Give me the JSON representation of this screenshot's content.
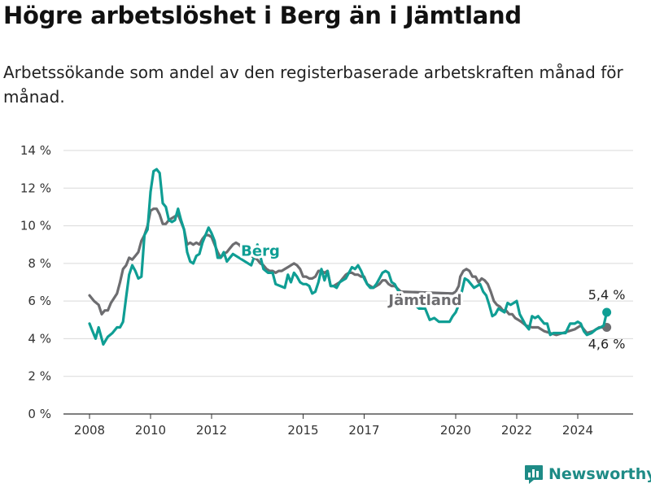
{
  "header": {
    "title": "Högre arbetslöshet i Berg än i Jämtland",
    "subtitle": "Arbetssökande som andel av den registerbaserade arbetskraften månad för månad."
  },
  "branding": {
    "name": "Newsworthy",
    "icon": "bar-chart-logo-icon"
  },
  "colors": {
    "berg": "#0f9e94",
    "jamtland": "#6d6d70",
    "grid": "#d9d9d9",
    "axis": "#333333"
  },
  "chart_data": {
    "type": "line",
    "ylim": [
      0,
      14
    ],
    "xlim": [
      2007.6,
      2025.8
    ],
    "y_ticks": [
      {
        "value": 0,
        "label": "0 %"
      },
      {
        "value": 2,
        "label": "2 %"
      },
      {
        "value": 4,
        "label": "4 %"
      },
      {
        "value": 6,
        "label": "6 %"
      },
      {
        "value": 8,
        "label": "8 %"
      },
      {
        "value": 10,
        "label": "10 %"
      },
      {
        "value": 12,
        "label": "12 %"
      },
      {
        "value": 14,
        "label": "14 %"
      }
    ],
    "x_ticks": [
      {
        "value": 2008,
        "label": "2008"
      },
      {
        "value": 2010,
        "label": "2010"
      },
      {
        "value": 2012,
        "label": "2012"
      },
      {
        "value": 2015,
        "label": "2015"
      },
      {
        "value": 2017,
        "label": "2017"
      },
      {
        "value": 2020,
        "label": "2020"
      },
      {
        "value": 2022,
        "label": "2022"
      },
      {
        "value": 2024,
        "label": "2024"
      }
    ],
    "grid": true,
    "series": [
      {
        "name": "Berg",
        "color": "#0f9e94",
        "end_label": "5,4 %",
        "points": [
          [
            2008.0,
            4.8
          ],
          [
            2008.1,
            4.4
          ],
          [
            2008.2,
            4.0
          ],
          [
            2008.3,
            4.6
          ],
          [
            2008.45,
            3.7
          ],
          [
            2008.6,
            4.1
          ],
          [
            2008.75,
            4.3
          ],
          [
            2008.9,
            4.6
          ],
          [
            2009.0,
            4.6
          ],
          [
            2009.1,
            4.9
          ],
          [
            2009.2,
            6.2
          ],
          [
            2009.3,
            7.4
          ],
          [
            2009.4,
            7.9
          ],
          [
            2009.5,
            7.6
          ],
          [
            2009.6,
            7.2
          ],
          [
            2009.7,
            7.3
          ],
          [
            2009.8,
            9.5
          ],
          [
            2009.9,
            9.8
          ],
          [
            2010.0,
            11.8
          ],
          [
            2010.1,
            12.9
          ],
          [
            2010.2,
            13.0
          ],
          [
            2010.3,
            12.8
          ],
          [
            2010.4,
            11.2
          ],
          [
            2010.5,
            11.0
          ],
          [
            2010.6,
            10.3
          ],
          [
            2010.7,
            10.2
          ],
          [
            2010.8,
            10.3
          ],
          [
            2010.9,
            10.9
          ],
          [
            2011.0,
            10.3
          ],
          [
            2011.1,
            9.8
          ],
          [
            2011.2,
            8.6
          ],
          [
            2011.3,
            8.1
          ],
          [
            2011.4,
            8.0
          ],
          [
            2011.5,
            8.4
          ],
          [
            2011.6,
            8.5
          ],
          [
            2011.7,
            9.1
          ],
          [
            2011.8,
            9.5
          ],
          [
            2011.9,
            9.9
          ],
          [
            2012.0,
            9.6
          ],
          [
            2012.1,
            9.2
          ],
          [
            2012.2,
            8.3
          ],
          [
            2012.3,
            8.3
          ],
          [
            2012.4,
            8.6
          ],
          [
            2012.5,
            8.1
          ],
          [
            2012.6,
            8.3
          ],
          [
            2012.7,
            8.5
          ],
          [
            2013.3,
            7.9
          ],
          [
            2013.45,
            8.6
          ],
          [
            2013.5,
            9.0
          ],
          [
            2013.7,
            7.7
          ],
          [
            2013.85,
            7.5
          ],
          [
            2014.0,
            7.5
          ],
          [
            2014.1,
            6.9
          ],
          [
            2014.25,
            6.8
          ],
          [
            2014.4,
            6.7
          ],
          [
            2014.5,
            7.4
          ],
          [
            2014.6,
            7.0
          ],
          [
            2014.7,
            7.5
          ],
          [
            2014.8,
            7.3
          ],
          [
            2014.9,
            7.0
          ],
          [
            2015.0,
            6.9
          ],
          [
            2015.1,
            6.9
          ],
          [
            2015.2,
            6.8
          ],
          [
            2015.3,
            6.4
          ],
          [
            2015.4,
            6.5
          ],
          [
            2015.5,
            7.0
          ],
          [
            2015.6,
            7.7
          ],
          [
            2015.7,
            7.1
          ],
          [
            2015.8,
            7.6
          ],
          [
            2015.9,
            6.8
          ],
          [
            2016.0,
            6.8
          ],
          [
            2016.1,
            6.7
          ],
          [
            2016.2,
            7.0
          ],
          [
            2016.3,
            7.1
          ],
          [
            2016.4,
            7.2
          ],
          [
            2016.5,
            7.5
          ],
          [
            2016.6,
            7.8
          ],
          [
            2016.7,
            7.7
          ],
          [
            2016.8,
            7.9
          ],
          [
            2016.9,
            7.6
          ],
          [
            2017.0,
            7.2
          ],
          [
            2017.1,
            6.9
          ],
          [
            2017.2,
            6.7
          ],
          [
            2017.3,
            6.7
          ],
          [
            2017.4,
            6.9
          ],
          [
            2017.5,
            7.2
          ],
          [
            2017.6,
            7.5
          ],
          [
            2017.7,
            7.6
          ],
          [
            2017.8,
            7.5
          ],
          [
            2017.9,
            7.0
          ],
          [
            2018.0,
            6.9
          ],
          [
            2018.1,
            6.6
          ],
          [
            2018.25,
            6.3
          ],
          [
            2018.6,
            5.9
          ],
          [
            2018.8,
            5.6
          ],
          [
            2018.9,
            5.6
          ],
          [
            2019.0,
            5.6
          ],
          [
            2019.15,
            5.0
          ],
          [
            2019.3,
            5.1
          ],
          [
            2019.45,
            4.9
          ],
          [
            2019.6,
            4.9
          ],
          [
            2019.8,
            4.9
          ],
          [
            2019.9,
            5.2
          ],
          [
            2020.0,
            5.4
          ],
          [
            2020.1,
            5.8
          ],
          [
            2020.2,
            6.5
          ],
          [
            2020.3,
            7.2
          ],
          [
            2020.4,
            7.1
          ],
          [
            2020.5,
            6.9
          ],
          [
            2020.6,
            6.7
          ],
          [
            2020.7,
            6.8
          ],
          [
            2020.8,
            6.9
          ],
          [
            2020.9,
            6.5
          ],
          [
            2021.0,
            6.3
          ],
          [
            2021.1,
            5.8
          ],
          [
            2021.2,
            5.2
          ],
          [
            2021.3,
            5.3
          ],
          [
            2021.4,
            5.6
          ],
          [
            2021.5,
            5.5
          ],
          [
            2021.6,
            5.4
          ],
          [
            2021.7,
            5.9
          ],
          [
            2021.8,
            5.8
          ],
          [
            2021.9,
            5.9
          ],
          [
            2022.0,
            6.0
          ],
          [
            2022.1,
            5.3
          ],
          [
            2022.2,
            5.0
          ],
          [
            2022.3,
            4.7
          ],
          [
            2022.4,
            4.5
          ],
          [
            2022.5,
            5.2
          ],
          [
            2022.6,
            5.1
          ],
          [
            2022.7,
            5.2
          ],
          [
            2022.8,
            5.0
          ],
          [
            2022.9,
            4.8
          ],
          [
            2023.0,
            4.8
          ],
          [
            2023.1,
            4.2
          ],
          [
            2023.2,
            4.3
          ],
          [
            2023.3,
            4.3
          ],
          [
            2023.45,
            4.3
          ],
          [
            2023.6,
            4.3
          ],
          [
            2023.75,
            4.8
          ],
          [
            2023.9,
            4.8
          ],
          [
            2024.0,
            4.9
          ],
          [
            2024.1,
            4.8
          ],
          [
            2024.2,
            4.4
          ],
          [
            2024.3,
            4.2
          ],
          [
            2024.45,
            4.3
          ],
          [
            2024.6,
            4.5
          ],
          [
            2024.75,
            4.6
          ],
          [
            2024.85,
            4.7
          ],
          [
            2024.95,
            5.4
          ]
        ]
      },
      {
        "name": "Jämtland",
        "color": "#6d6d70",
        "end_label": "4,6 %",
        "points": [
          [
            2008.0,
            6.3
          ],
          [
            2008.15,
            6.0
          ],
          [
            2008.3,
            5.8
          ],
          [
            2008.4,
            5.3
          ],
          [
            2008.5,
            5.5
          ],
          [
            2008.6,
            5.5
          ],
          [
            2008.7,
            5.9
          ],
          [
            2008.9,
            6.4
          ],
          [
            2009.0,
            7.0
          ],
          [
            2009.1,
            7.7
          ],
          [
            2009.2,
            7.9
          ],
          [
            2009.3,
            8.3
          ],
          [
            2009.4,
            8.2
          ],
          [
            2009.5,
            8.4
          ],
          [
            2009.6,
            8.6
          ],
          [
            2009.7,
            9.2
          ],
          [
            2009.8,
            9.5
          ],
          [
            2009.9,
            10.0
          ],
          [
            2010.0,
            10.8
          ],
          [
            2010.1,
            10.9
          ],
          [
            2010.2,
            10.9
          ],
          [
            2010.3,
            10.6
          ],
          [
            2010.4,
            10.1
          ],
          [
            2010.5,
            10.1
          ],
          [
            2010.6,
            10.3
          ],
          [
            2010.7,
            10.4
          ],
          [
            2010.8,
            10.5
          ],
          [
            2010.9,
            10.6
          ],
          [
            2011.0,
            10.2
          ],
          [
            2011.1,
            9.8
          ],
          [
            2011.2,
            9.0
          ],
          [
            2011.3,
            9.1
          ],
          [
            2011.4,
            9.0
          ],
          [
            2011.5,
            9.1
          ],
          [
            2011.6,
            9.0
          ],
          [
            2011.7,
            9.3
          ],
          [
            2011.8,
            9.5
          ],
          [
            2011.9,
            9.5
          ],
          [
            2012.0,
            9.4
          ],
          [
            2012.1,
            9.0
          ],
          [
            2012.2,
            8.6
          ],
          [
            2012.3,
            8.3
          ],
          [
            2012.4,
            8.5
          ],
          [
            2012.5,
            8.6
          ],
          [
            2012.6,
            8.8
          ],
          [
            2012.7,
            9.0
          ],
          [
            2012.8,
            9.1
          ],
          [
            2012.9,
            9.0
          ],
          [
            2013.0,
            8.8
          ],
          [
            2013.1,
            8.6
          ],
          [
            2013.2,
            8.5
          ],
          [
            2013.3,
            8.4
          ],
          [
            2013.4,
            8.3
          ],
          [
            2013.5,
            8.2
          ],
          [
            2013.6,
            8.0
          ],
          [
            2013.7,
            7.9
          ],
          [
            2013.8,
            7.7
          ],
          [
            2013.9,
            7.6
          ],
          [
            2014.0,
            7.6
          ],
          [
            2014.1,
            7.5
          ],
          [
            2014.2,
            7.6
          ],
          [
            2014.3,
            7.6
          ],
          [
            2014.4,
            7.7
          ],
          [
            2014.5,
            7.8
          ],
          [
            2014.6,
            7.9
          ],
          [
            2014.7,
            8.0
          ],
          [
            2014.8,
            7.9
          ],
          [
            2014.9,
            7.7
          ],
          [
            2015.0,
            7.3
          ],
          [
            2015.1,
            7.3
          ],
          [
            2015.2,
            7.2
          ],
          [
            2015.3,
            7.2
          ],
          [
            2015.4,
            7.3
          ],
          [
            2015.5,
            7.6
          ],
          [
            2015.6,
            7.6
          ],
          [
            2015.7,
            7.5
          ],
          [
            2015.8,
            7.6
          ],
          [
            2015.9,
            6.8
          ],
          [
            2016.0,
            6.8
          ],
          [
            2016.1,
            6.9
          ],
          [
            2016.2,
            7.0
          ],
          [
            2016.3,
            7.2
          ],
          [
            2016.4,
            7.4
          ],
          [
            2016.5,
            7.5
          ],
          [
            2016.6,
            7.5
          ],
          [
            2016.7,
            7.4
          ],
          [
            2016.8,
            7.4
          ],
          [
            2016.9,
            7.3
          ],
          [
            2017.0,
            7.3
          ],
          [
            2017.1,
            6.9
          ],
          [
            2017.2,
            6.8
          ],
          [
            2017.3,
            6.7
          ],
          [
            2017.4,
            6.8
          ],
          [
            2017.5,
            6.9
          ],
          [
            2017.6,
            7.1
          ],
          [
            2017.7,
            7.1
          ],
          [
            2017.8,
            6.9
          ],
          [
            2017.9,
            6.8
          ],
          [
            2018.0,
            6.8
          ],
          [
            2018.2,
            6.5
          ],
          [
            2019.9,
            6.4
          ],
          [
            2020.0,
            6.5
          ],
          [
            2020.1,
            6.8
          ],
          [
            2020.15,
            7.3
          ],
          [
            2020.25,
            7.6
          ],
          [
            2020.35,
            7.7
          ],
          [
            2020.45,
            7.6
          ],
          [
            2020.55,
            7.3
          ],
          [
            2020.65,
            7.3
          ],
          [
            2020.75,
            7.0
          ],
          [
            2020.85,
            7.2
          ],
          [
            2020.95,
            7.1
          ],
          [
            2021.05,
            6.9
          ],
          [
            2021.15,
            6.5
          ],
          [
            2021.25,
            6.0
          ],
          [
            2021.35,
            5.8
          ],
          [
            2021.45,
            5.7
          ],
          [
            2021.55,
            5.5
          ],
          [
            2021.65,
            5.5
          ],
          [
            2021.75,
            5.3
          ],
          [
            2021.85,
            5.3
          ],
          [
            2021.95,
            5.1
          ],
          [
            2022.05,
            5.0
          ],
          [
            2022.15,
            4.9
          ],
          [
            2022.3,
            4.7
          ],
          [
            2022.5,
            4.6
          ],
          [
            2022.7,
            4.6
          ],
          [
            2022.9,
            4.4
          ],
          [
            2023.1,
            4.3
          ],
          [
            2023.3,
            4.2
          ],
          [
            2023.5,
            4.3
          ],
          [
            2023.7,
            4.4
          ],
          [
            2023.9,
            4.5
          ],
          [
            2024.1,
            4.7
          ],
          [
            2024.3,
            4.3
          ],
          [
            2024.5,
            4.4
          ],
          [
            2024.7,
            4.6
          ],
          [
            2024.95,
            4.6
          ]
        ]
      }
    ]
  }
}
